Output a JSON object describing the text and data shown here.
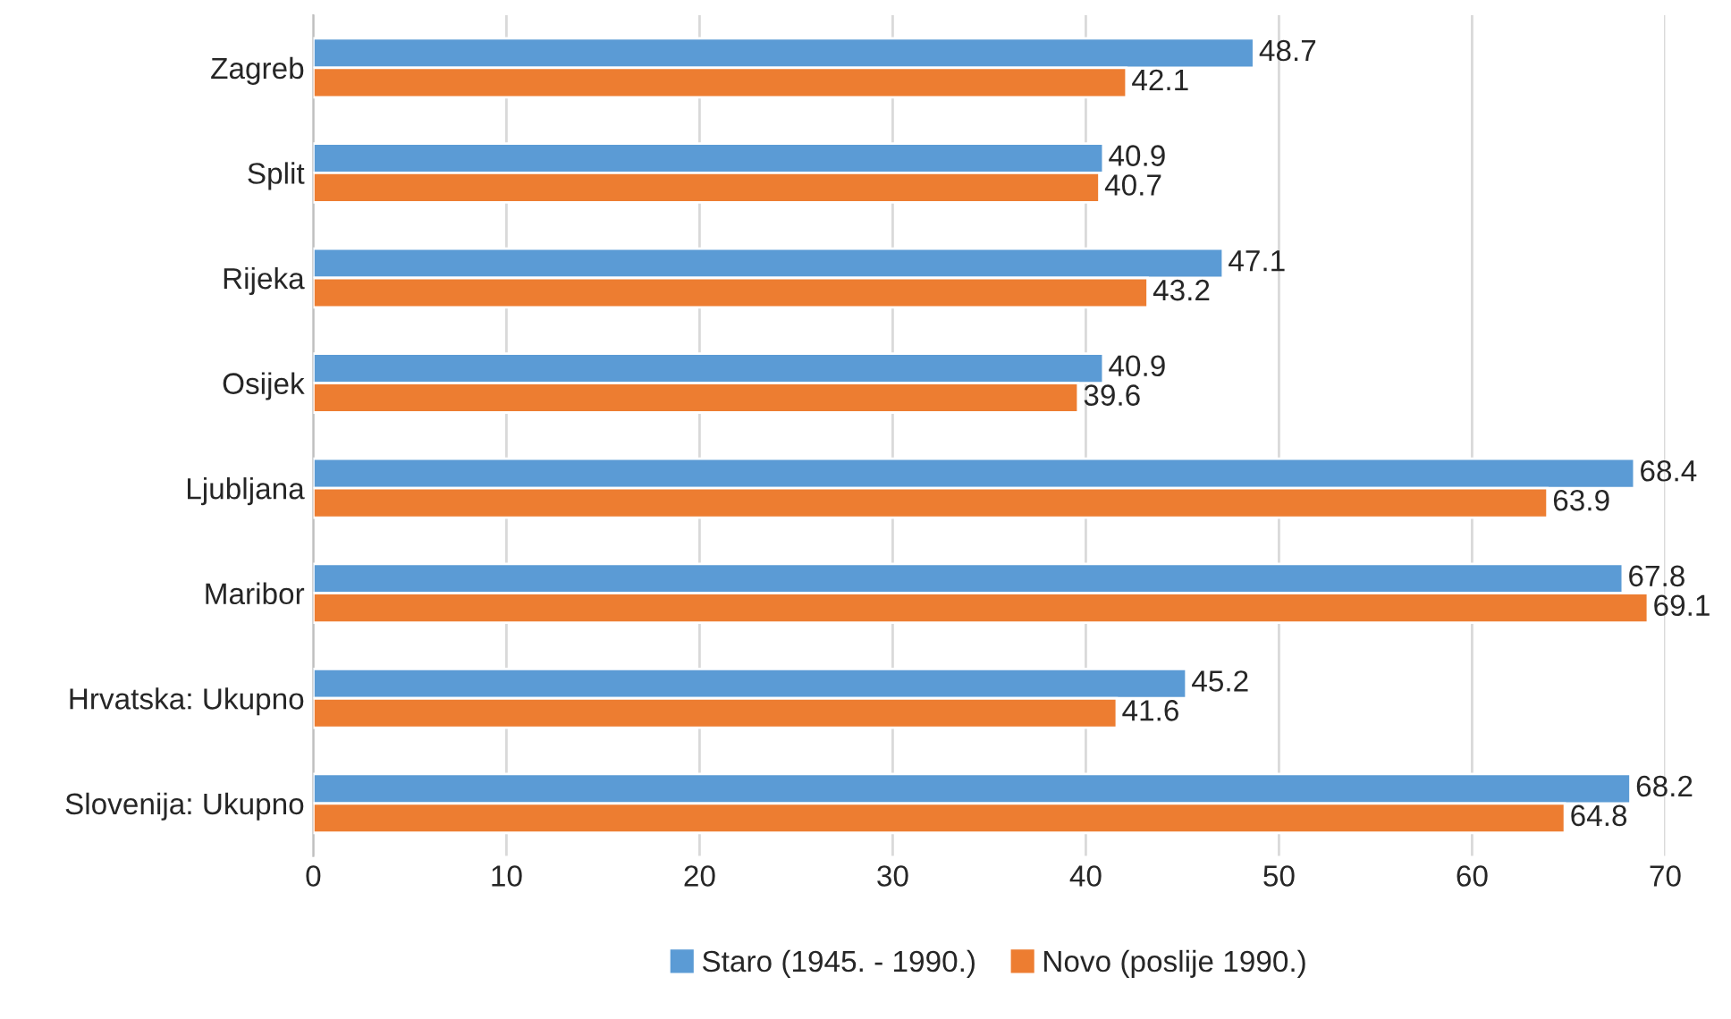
{
  "chart_data": {
    "type": "bar",
    "orientation": "horizontal",
    "categories": [
      "Zagreb",
      "Split",
      "Rijeka",
      "Osijek",
      "Ljubljana",
      "Maribor",
      "Hrvatska: Ukupno",
      "Slovenija: Ukupno"
    ],
    "series": [
      {
        "name": "Staro (1945. - 1990.)",
        "color": "#5b9bd5",
        "values": [
          48.7,
          40.9,
          47.1,
          40.9,
          68.4,
          67.8,
          45.2,
          68.2
        ]
      },
      {
        "name": "Novo (poslije 1990.)",
        "color": "#ed7d31",
        "values": [
          42.1,
          40.7,
          43.2,
          39.6,
          63.9,
          69.1,
          41.6,
          64.8
        ]
      }
    ],
    "xlim": [
      0,
      70
    ],
    "xticks": [
      0,
      10,
      20,
      30,
      40,
      50,
      60,
      70
    ],
    "grid": "x",
    "legend": "bottom",
    "data_labels": true
  }
}
